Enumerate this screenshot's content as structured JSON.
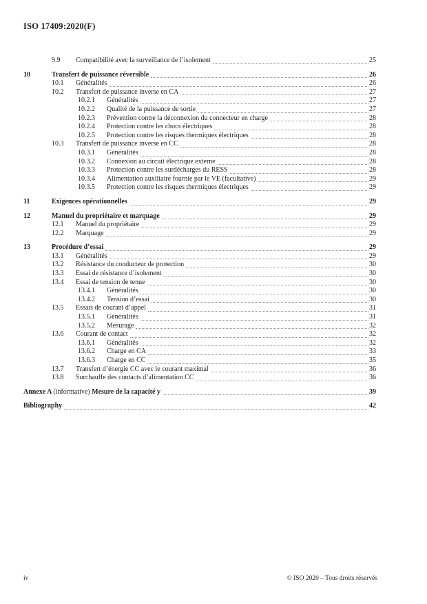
{
  "header": {
    "standard_reference": "ISO 17409:2020(F)"
  },
  "colors": {
    "text": "#1f1f1f",
    "leader_dots": "#8f8f8f",
    "background": "#ffffff"
  },
  "toc": {
    "entries": [
      {
        "level": 2,
        "num": "9.9",
        "title": "Compatibilité avec la surveillance de l’isolement",
        "page": "25"
      },
      {
        "level": 1,
        "num": "10",
        "title": "Transfert de puissance réversible",
        "page": "26"
      },
      {
        "level": 2,
        "num": "10.1",
        "title": "Généralités",
        "page": "26"
      },
      {
        "level": 2,
        "num": "10.2",
        "title": "Transfert de puissance inverse en CA",
        "page": "27"
      },
      {
        "level": 3,
        "num": "10.2.1",
        "title": "Généralités",
        "page": "27"
      },
      {
        "level": 3,
        "num": "10.2.2",
        "title": "Qualité de la puissance de sortie",
        "page": "27"
      },
      {
        "level": 3,
        "num": "10.2.3",
        "title": "Prévention contre la déconnexion du connecteur en charge",
        "page": "28"
      },
      {
        "level": 3,
        "num": "10.2.4",
        "title": "Protection contre les chocs électriques",
        "page": "28"
      },
      {
        "level": 3,
        "num": "10.2.5",
        "title": "Protection contre les risques thermiques électriques",
        "page": "28"
      },
      {
        "level": 2,
        "num": "10.3",
        "title": "Transfert de puissance inverse en CC",
        "page": "28"
      },
      {
        "level": 3,
        "num": "10.3.1",
        "title": "Généralités",
        "page": "28"
      },
      {
        "level": 3,
        "num": "10.3.2",
        "title": "Connexion au circuit électrique externe",
        "page": "28"
      },
      {
        "level": 3,
        "num": "10.3.3",
        "title": "Protection contre les surdécharges du RESS",
        "page": "28"
      },
      {
        "level": 3,
        "num": "10.3.4",
        "title": "Alimentation auxiliaire fournie par le VE (facultative)",
        "page": "29"
      },
      {
        "level": 3,
        "num": "10.3.5",
        "title": "Protection contre les risques thermiques électriques",
        "page": "29"
      },
      {
        "level": 1,
        "num": "11",
        "title": "Exigences opérationnelles",
        "page": "29"
      },
      {
        "level": 1,
        "num": "12",
        "title": "Manuel du propriétaire et marquage",
        "page": "29"
      },
      {
        "level": 2,
        "num": "12.1",
        "title": "Manuel du propriétaire",
        "page": "29"
      },
      {
        "level": 2,
        "num": "12.2",
        "title": "Marquage",
        "page": "29"
      },
      {
        "level": 1,
        "num": "13",
        "title": "Procédure d’essai",
        "page": "29"
      },
      {
        "level": 2,
        "num": "13.1",
        "title": "Généralités",
        "page": "29"
      },
      {
        "level": 2,
        "num": "13.2",
        "title": "Résistance du conducteur de protection",
        "page": "30"
      },
      {
        "level": 2,
        "num": "13.3",
        "title": "Essai de résistance d’isolement",
        "page": "30"
      },
      {
        "level": 2,
        "num": "13.4",
        "title": "Essai de tension de tenue",
        "page": "30"
      },
      {
        "level": 3,
        "num": "13.4.1",
        "title": "Généralités",
        "page": "30"
      },
      {
        "level": 3,
        "num": "13.4.2",
        "title": "Tension d’essai",
        "page": "30"
      },
      {
        "level": 2,
        "num": "13.5",
        "title": "Essais de courant d’appel",
        "page": "31"
      },
      {
        "level": 3,
        "num": "13.5.1",
        "title": "Généralités",
        "page": "31"
      },
      {
        "level": 3,
        "num": "13.5.2",
        "title": "Mesurage",
        "page": "32"
      },
      {
        "level": 2,
        "num": "13.6",
        "title": "Courant de contact",
        "page": "32"
      },
      {
        "level": 3,
        "num": "13.6.1",
        "title": "Généralités",
        "page": "32"
      },
      {
        "level": 3,
        "num": "13.6.2",
        "title": "Charge en CA",
        "page": "33"
      },
      {
        "level": 3,
        "num": "13.6.3",
        "title": "Charge en CC",
        "page": "35"
      },
      {
        "level": 2,
        "num": "13.7",
        "title": "Transfert d’énergie CC avec le courant maximal",
        "page": "36"
      },
      {
        "level": 2,
        "num": "13.8",
        "title": "Surchauffe des contacts d’alimentation CC",
        "page": "36"
      },
      {
        "level": 0,
        "title_parts": [
          {
            "text": "Annexe A ",
            "bold": true
          },
          {
            "text": "(informative) ",
            "bold": false
          },
          {
            "text": "Mesure de la capacité y",
            "bold": true
          }
        ],
        "page": "39"
      },
      {
        "level": 0,
        "title": "Bibliography",
        "page": "42"
      }
    ]
  },
  "footer": {
    "page_label": "iv",
    "copyright": "© ISO 2020 – Tous droits réservés"
  }
}
